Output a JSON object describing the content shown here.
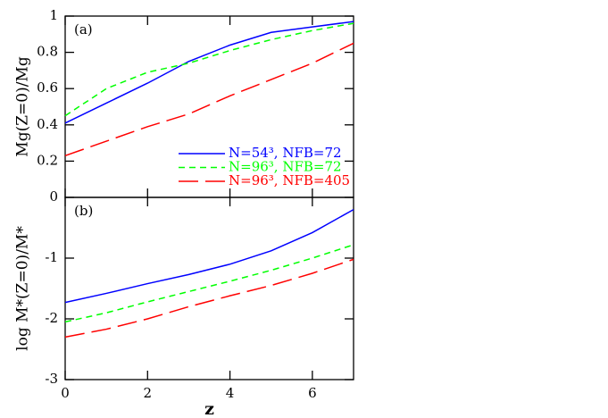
{
  "chart_data": [
    {
      "type": "line",
      "label": "(a)",
      "ylabel": "Mg(Z=0)/Mg",
      "x": [
        0,
        1,
        2,
        3,
        4,
        5,
        6,
        7
      ],
      "xlim": [
        0,
        7
      ],
      "xticks": [
        0,
        2,
        4,
        6
      ],
      "ylim": [
        0,
        1
      ],
      "yticks": [
        0,
        0.2,
        0.4,
        0.6,
        0.8,
        1
      ],
      "legend": "lower right",
      "series": [
        {
          "name": "N=54³,  NFB=72",
          "color": "#0000ff",
          "dash": "solid",
          "values": [
            0.41,
            0.52,
            0.63,
            0.75,
            0.84,
            0.91,
            0.94,
            0.97
          ]
        },
        {
          "name": "N=96³,  NFB=72",
          "color": "#00ff00",
          "dash": "short",
          "values": [
            0.45,
            0.6,
            0.69,
            0.74,
            0.81,
            0.87,
            0.92,
            0.96
          ]
        },
        {
          "name": "N=96³,  NFB=405",
          "color": "#ff0000",
          "dash": "long",
          "values": [
            0.23,
            0.31,
            0.39,
            0.46,
            0.56,
            0.65,
            0.74,
            0.85
          ]
        }
      ]
    },
    {
      "type": "line",
      "label": "(b)",
      "ylabel": "log M*(Z=0)/M*",
      "xlabel": "z",
      "x": [
        0,
        1,
        2,
        3,
        4,
        5,
        6,
        7
      ],
      "xlim": [
        0,
        7
      ],
      "xticks": [
        0,
        2,
        4,
        6
      ],
      "ylim": [
        -3,
        0
      ],
      "yticks": [
        -3,
        -2,
        -1
      ],
      "series": [
        {
          "color": "#0000ff",
          "dash": "solid",
          "values": [
            -1.73,
            -1.58,
            -1.42,
            -1.27,
            -1.1,
            -0.88,
            -0.58,
            -0.2
          ]
        },
        {
          "color": "#00ff00",
          "dash": "short",
          "values": [
            -2.05,
            -1.9,
            -1.72,
            -1.55,
            -1.38,
            -1.2,
            -1.0,
            -0.78
          ]
        },
        {
          "color": "#ff0000",
          "dash": "long",
          "values": [
            -2.3,
            -2.17,
            -2.0,
            -1.8,
            -1.62,
            -1.45,
            -1.25,
            -1.02
          ]
        }
      ]
    }
  ]
}
